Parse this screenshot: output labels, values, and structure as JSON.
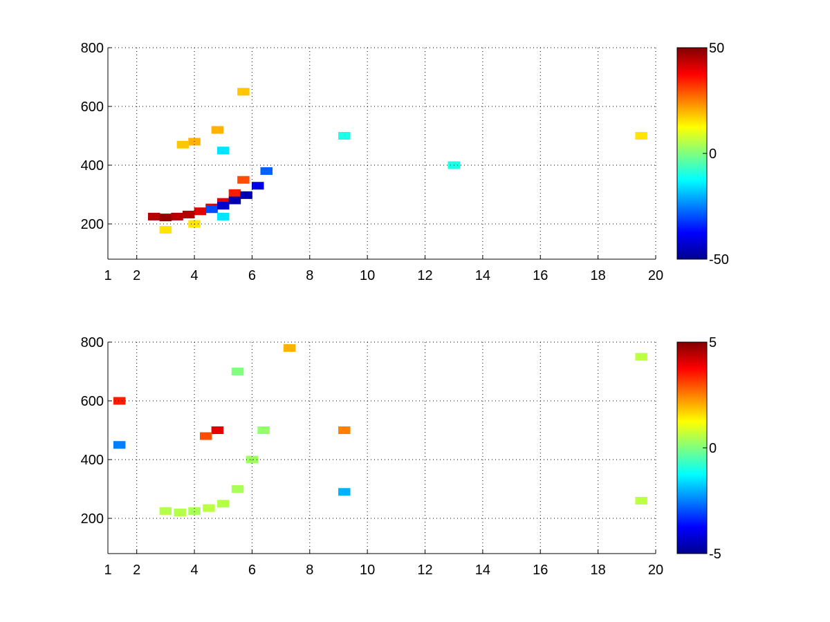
{
  "chart_data": [
    {
      "type": "heatmap",
      "title": "",
      "xlabel": "",
      "ylabel": "",
      "xlim": [
        1,
        20
      ],
      "ylim": [
        80,
        800
      ],
      "xticks": [
        1,
        2,
        4,
        6,
        8,
        10,
        12,
        14,
        16,
        18,
        20
      ],
      "yticks": [
        200,
        400,
        600,
        800
      ],
      "grid": "on",
      "colormap": "jet",
      "colorbar": {
        "range": [
          -50,
          50
        ],
        "ticks": [
          -50,
          0,
          50
        ],
        "tick_labels": [
          "-50",
          "0",
          "50"
        ]
      },
      "cells": [
        {
          "x": 2.6,
          "y": 225,
          "value": 45
        },
        {
          "x": 3.0,
          "y": 222,
          "value": 48
        },
        {
          "x": 3.4,
          "y": 225,
          "value": 45
        },
        {
          "x": 3.8,
          "y": 232,
          "value": 45
        },
        {
          "x": 4.2,
          "y": 243,
          "value": 40
        },
        {
          "x": 4.6,
          "y": 256,
          "value": 40
        },
        {
          "x": 5.0,
          "y": 275,
          "value": 40
        },
        {
          "x": 5.4,
          "y": 305,
          "value": 35
        },
        {
          "x": 5.7,
          "y": 350,
          "value": 30
        },
        {
          "x": 4.6,
          "y": 250,
          "value": -30
        },
        {
          "x": 5.0,
          "y": 262,
          "value": -42
        },
        {
          "x": 5.4,
          "y": 280,
          "value": -45
        },
        {
          "x": 5.8,
          "y": 298,
          "value": -45
        },
        {
          "x": 6.2,
          "y": 330,
          "value": -40
        },
        {
          "x": 6.5,
          "y": 380,
          "value": -28
        },
        {
          "x": 3.0,
          "y": 180,
          "value": 15
        },
        {
          "x": 4.0,
          "y": 200,
          "value": 15
        },
        {
          "x": 5.0,
          "y": 225,
          "value": -15
        },
        {
          "x": 5.7,
          "y": 650,
          "value": 18
        },
        {
          "x": 4.0,
          "y": 480,
          "value": 20
        },
        {
          "x": 4.8,
          "y": 520,
          "value": 20
        },
        {
          "x": 3.6,
          "y": 470,
          "value": 18
        },
        {
          "x": 5.0,
          "y": 450,
          "value": -15
        },
        {
          "x": 9.2,
          "y": 500,
          "value": -10
        },
        {
          "x": 13.0,
          "y": 400,
          "value": -10
        },
        {
          "x": 19.5,
          "y": 500,
          "value": 15
        }
      ]
    },
    {
      "type": "heatmap",
      "title": "",
      "xlabel": "",
      "ylabel": "",
      "xlim": [
        1,
        20
      ],
      "ylim": [
        80,
        800
      ],
      "xticks": [
        1,
        2,
        4,
        6,
        8,
        10,
        12,
        14,
        16,
        18,
        20
      ],
      "yticks": [
        200,
        400,
        600,
        800
      ],
      "grid": "on",
      "colormap": "jet",
      "colorbar": {
        "range": [
          -5,
          5
        ],
        "ticks": [
          -5,
          0,
          5
        ],
        "tick_labels": [
          "-5",
          "0",
          "5"
        ]
      },
      "cells": [
        {
          "x": 3.0,
          "y": 225,
          "value": 0.5
        },
        {
          "x": 3.5,
          "y": 220,
          "value": 0.5
        },
        {
          "x": 4.0,
          "y": 225,
          "value": 0.4
        },
        {
          "x": 4.5,
          "y": 235,
          "value": 0.6
        },
        {
          "x": 5.0,
          "y": 250,
          "value": 0.5
        },
        {
          "x": 5.5,
          "y": 300,
          "value": 0.4
        },
        {
          "x": 6.0,
          "y": 400,
          "value": 0.3
        },
        {
          "x": 6.4,
          "y": 500,
          "value": 0.2
        },
        {
          "x": 5.5,
          "y": 700,
          "value": 0.0
        },
        {
          "x": 1.4,
          "y": 600,
          "value": 3.5
        },
        {
          "x": 1.4,
          "y": 450,
          "value": -2.5
        },
        {
          "x": 4.8,
          "y": 500,
          "value": 4.0
        },
        {
          "x": 4.4,
          "y": 480,
          "value": 3.0
        },
        {
          "x": 7.3,
          "y": 780,
          "value": 2.0
        },
        {
          "x": 9.2,
          "y": 500,
          "value": 2.5
        },
        {
          "x": 9.2,
          "y": 290,
          "value": -2.0
        },
        {
          "x": 19.5,
          "y": 750,
          "value": 0.6
        },
        {
          "x": 19.5,
          "y": 260,
          "value": 0.6
        }
      ]
    }
  ]
}
